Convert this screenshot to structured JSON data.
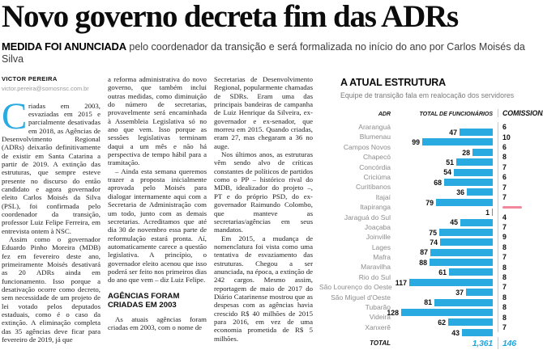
{
  "article": {
    "headline": "Novo governo decreta fim das ADRs",
    "deck_lead": "MEDIDA FOI ANUNCIADA",
    "deck_rest": " pelo coordenador da transição e será formalizada no início do ano por Carlos Moisés da Silva",
    "byline": {
      "author": "VICTOR PEREIRA",
      "email": "victor.pereira@somosnsc.com.br"
    },
    "dropcap": "C",
    "dropcap_color": "#29abe2",
    "col1_p1": "riadas em 2003, esvaziadas em 2015 e parcialmente desativadas em 2018, as Agências de Desenvolvimento Regional (ADRs) deixarão definitivamente de existir em Santa Catarina a partir de 2019. A extinção das estruturas, que sempre esteve presente no discurso do então candidato e agora governador eleito Carlos Moisés da Silva (PSL), foi confirmada pelo coordenador da transição, professor Luiz Felipe Ferreira, em entrevista ontem à NSC.",
    "col1_p2": "Assim como o governador Eduardo Pinho Moreira (MDB) fez em fevereiro deste ano, primeiramente Moisés desativará as 20 ADRs ainda em funcionamento. Isso porque a desativação ocorre como decreto, sem necessidade de um projeto de lei votado pelos deputados estaduais, como é o caso da extinção. A eliminação completa das 35 agências deve ficar para fevereiro de 2019, já que",
    "col2_p1": "a reforma administrativa do novo governo, que também inclui outras medidas, como diminuição do número de secretarias, provavelmente será encaminhada à Assembleia Legislativa só no ano que vem. Isso porque as sessões legislativas terminam daqui a um mês e não há perspectiva de tempo hábil para a tramitação.",
    "col2_p2": "– Ainda esta semana queremos trazer a proposta inicialmente aprovada pelo Moisés para dialogar internamente aqui com a Secretaria de Administração com um todo, junto com as demais secretarias. Acreditamos que até dia 30 de novembro essa parte de reformulação estará pronta. Aí, automaticamente carece a questão legislativa. A princípio, o governador eleito acenou que isso poderá ser feito nos primeiros dias do ano que vem – diz Luiz Felipe.",
    "col2_subhead": "AGÊNCIAS FORAM CRIADAS EM 2003",
    "col2_p3": "As atuais agências foram criadas em 2003, com o nome de",
    "col3_p1": "Secretarias de Desenvolvimento Regional, popularmente chamadas de SDRs. Eram uma das principais bandeiras de campanha de Luiz Henrique da Silveira, ex-governador e ex-senador, que morreu em 2015. Quando criadas, eram 27, mas chegaram a 36 no auge.",
    "col3_p2": "Nos últimos anos, as estruturas vêm sendo alvo de críticas constantes de políticos de partidos como o PP – histórico rival do MDB, idealizador do projeto –, PT e do próprio PSD, do ex-governador Raimundo Colombo, que manteve as secretarias/agências em seus mandatos.",
    "col3_p3": "Em 2015, a mudança de nomenclatura foi vista como uma tentativa de esvaziamento das estruturas. Chegou a ser anunciada, na época, a extinção de 242 cargos. Mesmo assim, reportagem de maio de 2017 do Diário Catarinense mostrou que as despesas com as agências havia crescido R$ 40 milhões de 2015 para 2016, em vez de uma economia prometida de R$ 5 milhões."
  },
  "infographic": {
    "title": "A ATUAL ESTRUTURA",
    "subtitle": "Equipe de transição fala em realocação dos servidores",
    "columns": [
      "ADR",
      "TOTAL DE FUNCIONÁRIOS",
      "COMISSIONADOS"
    ],
    "bar_color": "#29abe2",
    "accent_blue": "#1ca6e0",
    "dash_color": "#f2879b",
    "rows": [
      {
        "adr": "Araranguá",
        "funcionarios": 47,
        "comissionados": 6
      },
      {
        "adr": "Blumenau",
        "funcionarios": 99,
        "comissionados": 10
      },
      {
        "adr": "Campos Novos",
        "funcionarios": 28,
        "comissionados": 6
      },
      {
        "adr": "Chapecó",
        "funcionarios": 51,
        "comissionados": 8
      },
      {
        "adr": "Concórdia",
        "funcionarios": 54,
        "comissionados": 7
      },
      {
        "adr": "Criciúma",
        "funcionarios": 68,
        "comissionados": 6
      },
      {
        "adr": "Curitibanos",
        "funcionarios": 36,
        "comissionados": 7
      },
      {
        "adr": "Itajaí",
        "funcionarios": 79,
        "comissionados": 7
      },
      {
        "adr": "Itapiranga",
        "funcionarios": 1,
        "comissionados": null
      },
      {
        "adr": "Jaraguá do Sul",
        "funcionarios": 45,
        "comissionados": 4
      },
      {
        "adr": "Joaçaba",
        "funcionarios": 75,
        "comissionados": 7
      },
      {
        "adr": "Joinville",
        "funcionarios": 74,
        "comissionados": 9
      },
      {
        "adr": "Lages",
        "funcionarios": 87,
        "comissionados": 8
      },
      {
        "adr": "Mafra",
        "funcionarios": 88,
        "comissionados": 7
      },
      {
        "adr": "Maravilha",
        "funcionarios": 61,
        "comissionados": 8
      },
      {
        "adr": "Rio do Sul",
        "funcionarios": 117,
        "comissionados": 8
      },
      {
        "adr": "São Lourenço do Oeste",
        "funcionarios": 37,
        "comissionados": 7
      },
      {
        "adr": "São Miguel d'Oeste",
        "funcionarios": 81,
        "comissionados": 8
      },
      {
        "adr": "Tubarão",
        "funcionarios": 128,
        "comissionados": 8
      },
      {
        "adr": "Videira",
        "funcionarios": 62,
        "comissionados": 8
      },
      {
        "adr": "Xanxerê",
        "funcionarios": 43,
        "comissionados": 7
      }
    ],
    "total_label": "TOTAL",
    "total_funcionarios": "1,361",
    "total_comissionados": "146"
  },
  "chart_data": {
    "type": "bar",
    "title": "A ATUAL ESTRUTURA",
    "subtitle": "Equipe de transição fala em realocação dos servidores",
    "orientation": "horizontal",
    "categories": [
      "Araranguá",
      "Blumenau",
      "Campos Novos",
      "Chapecó",
      "Concórdia",
      "Criciúma",
      "Curitibanos",
      "Itajaí",
      "Itapiranga",
      "Jaraguá do Sul",
      "Joaçaba",
      "Joinville",
      "Lages",
      "Mafra",
      "Maravilha",
      "Rio do Sul",
      "São Lourenço do Oeste",
      "São Miguel d'Oeste",
      "Tubarão",
      "Videira",
      "Xanxerê"
    ],
    "series": [
      {
        "name": "TOTAL DE FUNCIONÁRIOS",
        "values": [
          47,
          99,
          28,
          51,
          54,
          68,
          36,
          79,
          1,
          45,
          75,
          74,
          87,
          88,
          61,
          117,
          37,
          81,
          128,
          62,
          43
        ]
      },
      {
        "name": "COMISSIONADOS",
        "values": [
          6,
          10,
          6,
          8,
          7,
          6,
          7,
          7,
          null,
          4,
          7,
          9,
          8,
          7,
          8,
          8,
          7,
          8,
          8,
          8,
          7
        ]
      }
    ],
    "totals": {
      "TOTAL DE FUNCIONÁRIOS": "1,361",
      "COMISSIONADOS": "146"
    },
    "xlim": [
      0,
      128
    ],
    "grid": false,
    "legend": false
  }
}
